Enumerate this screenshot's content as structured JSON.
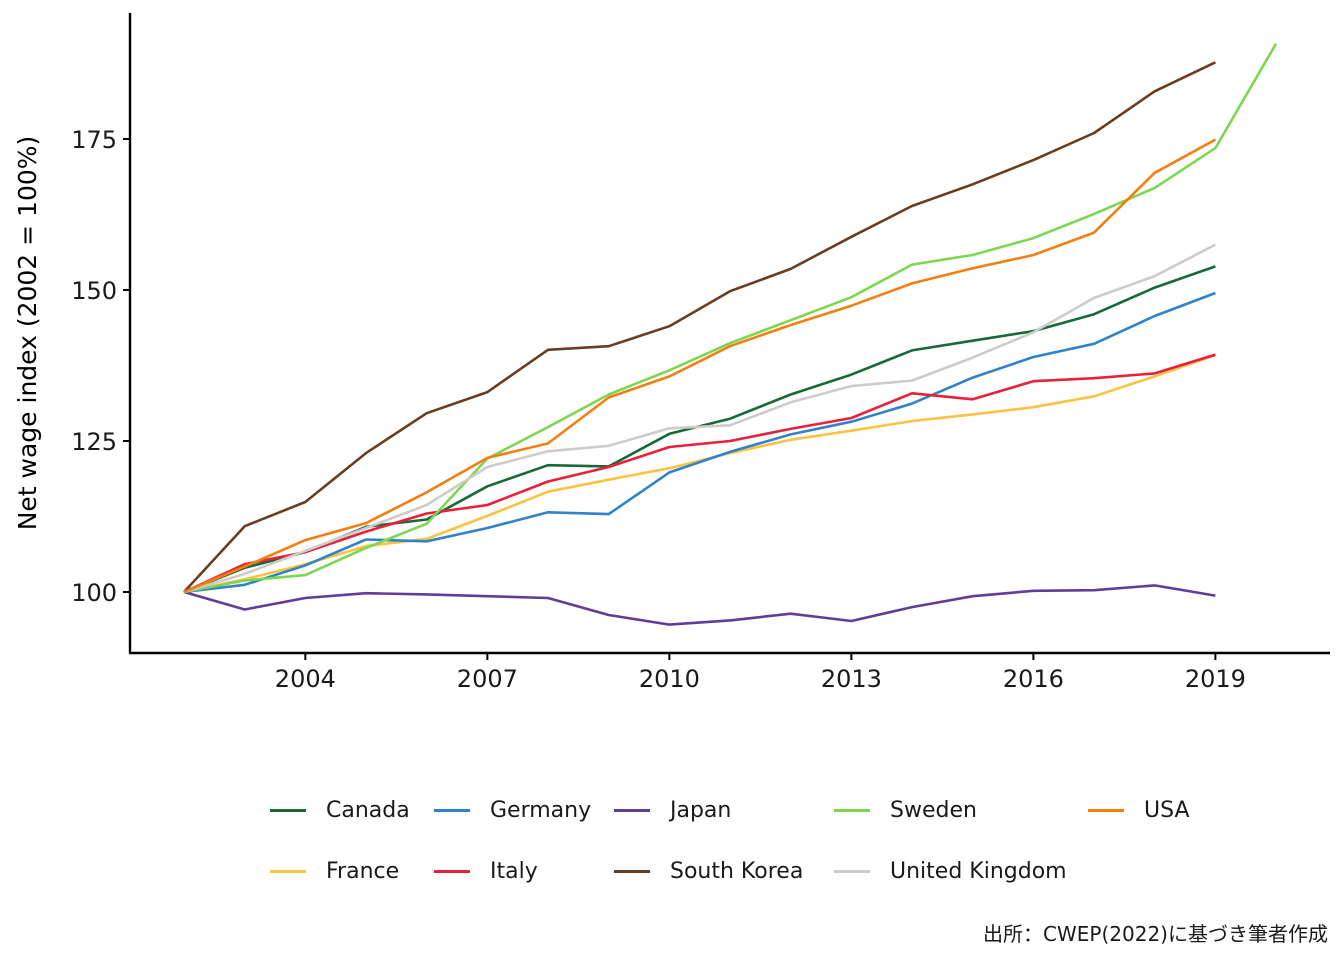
{
  "chart_data": {
    "type": "line",
    "title": "",
    "xlabel": "",
    "ylabel": "Net wage index (2002 = 100%)",
    "xlim": [
      2001.1,
      2020.8
    ],
    "ylim": [
      90,
      200
    ],
    "x_ticks": [
      2004,
      2007,
      2010,
      2013,
      2016,
      2019
    ],
    "x_tick_labels": [
      "2004",
      "2007",
      "2010",
      "2013",
      "2016",
      "2019"
    ],
    "y_ticks": [
      100,
      125,
      150,
      175
    ],
    "y_tick_labels": [
      "100",
      "125",
      "150",
      "175"
    ],
    "grid": false,
    "legend_position": "bottom",
    "x": [
      2002,
      2003,
      2004,
      2005,
      2006,
      2007,
      2008,
      2009,
      2010,
      2011,
      2012,
      2013,
      2014,
      2015,
      2016,
      2017,
      2018,
      2019,
      2020
    ],
    "series": [
      {
        "name": "Canada",
        "color": "#17693a",
        "values": [
          100,
          104.0,
          106.6,
          110.8,
          112.0,
          117.5,
          121.0,
          120.8,
          126.2,
          128.7,
          132.7,
          136.0,
          140.0,
          141.6,
          143.2,
          146.0,
          150.4,
          153.9,
          null
        ]
      },
      {
        "name": "France",
        "color": "#f9c343",
        "values": [
          100,
          102.1,
          104.6,
          107.6,
          108.8,
          112.6,
          116.6,
          118.6,
          120.5,
          123.0,
          125.2,
          126.7,
          128.3,
          129.4,
          130.6,
          132.4,
          135.7,
          139.2,
          null
        ]
      },
      {
        "name": "Germany",
        "color": "#3182c8",
        "values": [
          100,
          101.2,
          104.4,
          108.7,
          108.4,
          110.6,
          113.2,
          112.9,
          119.8,
          123.2,
          126.1,
          128.2,
          131.2,
          135.5,
          138.9,
          141.1,
          145.7,
          149.5,
          null
        ]
      },
      {
        "name": "Italy",
        "color": "#e8213b",
        "values": [
          100,
          104.6,
          106.6,
          110.0,
          113.0,
          114.4,
          118.3,
          120.7,
          124.0,
          125.0,
          127.0,
          128.8,
          132.9,
          131.9,
          134.9,
          135.4,
          136.2,
          139.3,
          null
        ]
      },
      {
        "name": "Japan",
        "color": "#5f3f96",
        "values": [
          100,
          97.1,
          99.0,
          99.8,
          99.6,
          99.3,
          99.0,
          96.2,
          94.6,
          95.3,
          96.4,
          95.2,
          97.5,
          99.3,
          100.2,
          100.3,
          101.1,
          99.4,
          null
        ]
      },
      {
        "name": "South Korea",
        "color": "#6a3d1f",
        "values": [
          100,
          110.9,
          114.9,
          123.0,
          129.6,
          133.1,
          140.1,
          140.7,
          144.0,
          149.8,
          153.5,
          158.8,
          163.9,
          167.5,
          171.5,
          176.0,
          182.9,
          187.7,
          null
        ]
      },
      {
        "name": "Sweden",
        "color": "#7dd650",
        "values": [
          100,
          101.9,
          102.8,
          107.3,
          111.3,
          122.1,
          127.3,
          132.7,
          136.7,
          141.2,
          145.0,
          148.8,
          154.2,
          155.8,
          158.6,
          162.6,
          166.9,
          173.5,
          190.8
        ]
      },
      {
        "name": "United Kingdom",
        "color": "#cccccc",
        "values": [
          100,
          103.0,
          106.8,
          110.6,
          114.4,
          120.7,
          123.3,
          124.2,
          127.1,
          127.6,
          131.4,
          134.1,
          135.0,
          138.8,
          143.0,
          148.7,
          152.3,
          157.5,
          null
        ]
      },
      {
        "name": "USA",
        "color": "#f17f12",
        "values": [
          100,
          104.2,
          108.6,
          111.4,
          116.5,
          122.2,
          124.6,
          132.2,
          135.7,
          140.7,
          144.2,
          147.4,
          151.1,
          153.6,
          155.8,
          159.5,
          169.4,
          174.9,
          null
        ]
      }
    ],
    "legend_order": [
      "Canada",
      "Germany",
      "Japan",
      "Sweden",
      "USA",
      "France",
      "Italy",
      "South Korea",
      "United Kingdom"
    ],
    "caption": "出所：CWEP(2022)に基づき筆者作成"
  }
}
